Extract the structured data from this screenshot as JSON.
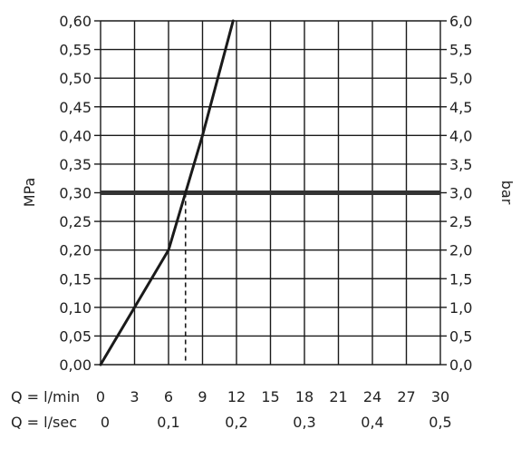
{
  "chart_data": {
    "type": "line",
    "ylabel": "MPa",
    "y2label": "bar",
    "xlabel": "Q = l/min",
    "x2label": "Q = l/sec",
    "xlim": [
      0,
      30
    ],
    "ylim": [
      0,
      0.6
    ],
    "grid": true,
    "x_ticks": [
      "0",
      "3",
      "6",
      "9",
      "12",
      "15",
      "18",
      "21",
      "24",
      "27",
      "30"
    ],
    "x2_ticks": [
      {
        "q": 0,
        "label": "0"
      },
      {
        "q": 6,
        "label": "0,1"
      },
      {
        "q": 12,
        "label": "0,2"
      },
      {
        "q": 18,
        "label": "0,3"
      },
      {
        "q": 24,
        "label": "0,4"
      },
      {
        "q": 30,
        "label": "0,5"
      }
    ],
    "y_ticks": [
      "0,00",
      "0,05",
      "0,10",
      "0,15",
      "0,20",
      "0,25",
      "0,30",
      "0,35",
      "0,40",
      "0,45",
      "0,50",
      "0,55",
      "0,60"
    ],
    "y2_ticks": [
      "0,0",
      "0,5",
      "1,0",
      "1,5",
      "2,0",
      "2,5",
      "3,0",
      "3,5",
      "4,0",
      "4,5",
      "5,0",
      "5,5",
      "6,0"
    ],
    "series": [
      {
        "color": "#1a1a1a",
        "points": [
          [
            0,
            0
          ],
          [
            3,
            0.1
          ],
          [
            6,
            0.2
          ],
          [
            7.5,
            0.3
          ],
          [
            9,
            0.4
          ],
          [
            11.7,
            0.6
          ]
        ]
      }
    ],
    "reference_line": {
      "y": 0.3,
      "color": "#333333"
    },
    "marker_drop": {
      "x": 7.5,
      "y": 0.3
    }
  }
}
